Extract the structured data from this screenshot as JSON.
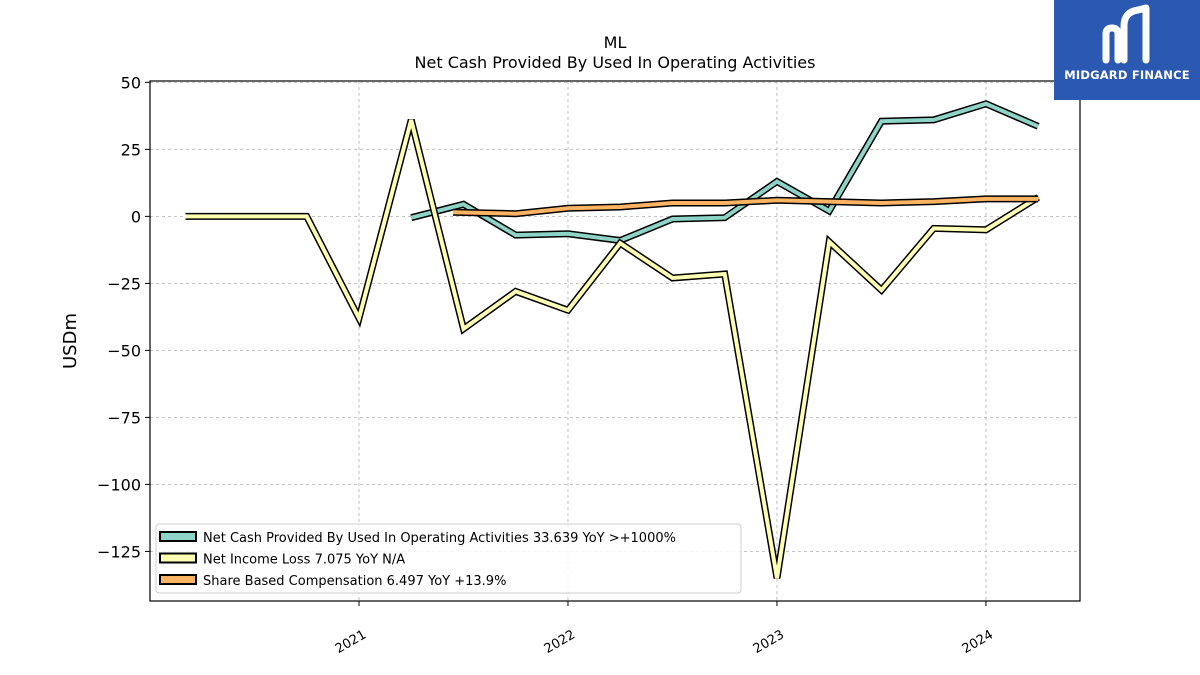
{
  "chart_data": {
    "type": "line",
    "title": "ML",
    "subtitle": "Net Cash Provided By Used In Operating Activities",
    "ylabel": "USDm",
    "xlabel": "",
    "ylim": [
      -143.5,
      50.5
    ],
    "xlim": [
      2020.0,
      2024.45
    ],
    "yticks": [
      50,
      25,
      0,
      -25,
      -50,
      -75,
      -100,
      -125
    ],
    "ytick_labels": [
      "50",
      "25",
      "0",
      "−25",
      "−50",
      "−75",
      "−100",
      "−125"
    ],
    "xticks": [
      2021,
      2022,
      2023,
      2024
    ],
    "xtick_labels": [
      "2021",
      "2022",
      "2023",
      "2024"
    ],
    "grid": true,
    "legend_position": "lower-left",
    "series": [
      {
        "name": "Net Cash Provided By Used In Operating Activities  33.639 YoY >+1000%",
        "color": "#8dd3c7",
        "x": [
          2021.25,
          2021.5,
          2021.75,
          2022.0,
          2022.25,
          2022.5,
          2022.75,
          2023.0,
          2023.25,
          2023.5,
          2023.75,
          2024.0,
          2024.25
        ],
        "y": [
          -0.5,
          4.5,
          -7,
          -6.5,
          -9,
          -1,
          -0.5,
          13,
          2,
          35.5,
          36,
          42,
          33.6
        ]
      },
      {
        "name": "Net Income Loss  7.075 YoY N/A",
        "color": "#ffffb3",
        "x": [
          2020.17,
          2020.45,
          2020.75,
          2021.0,
          2021.25,
          2021.5,
          2021.75,
          2022.0,
          2022.25,
          2022.5,
          2022.75,
          2023.0,
          2023.25,
          2023.5,
          2023.75,
          2024.0,
          2024.25
        ],
        "y": [
          0,
          0,
          0,
          -38,
          36,
          -42,
          -28,
          -35,
          -10,
          -23,
          -21.5,
          -135,
          -9.5,
          -27.5,
          -4.5,
          -5,
          7.1
        ]
      },
      {
        "name": "Share Based Compensation  6.497 YoY +13.9%",
        "color": "#fdb462",
        "x": [
          2021.45,
          2021.75,
          2022.0,
          2022.25,
          2022.5,
          2022.75,
          2023.0,
          2023.25,
          2023.5,
          2023.75,
          2024.0,
          2024.25
        ],
        "y": [
          1.5,
          1,
          3,
          3.5,
          5,
          5,
          6,
          5.5,
          5,
          5.5,
          6.5,
          6.5
        ]
      }
    ]
  },
  "logo": {
    "text": "MIDGARD FINANCE",
    "color": "#2b59b1"
  }
}
